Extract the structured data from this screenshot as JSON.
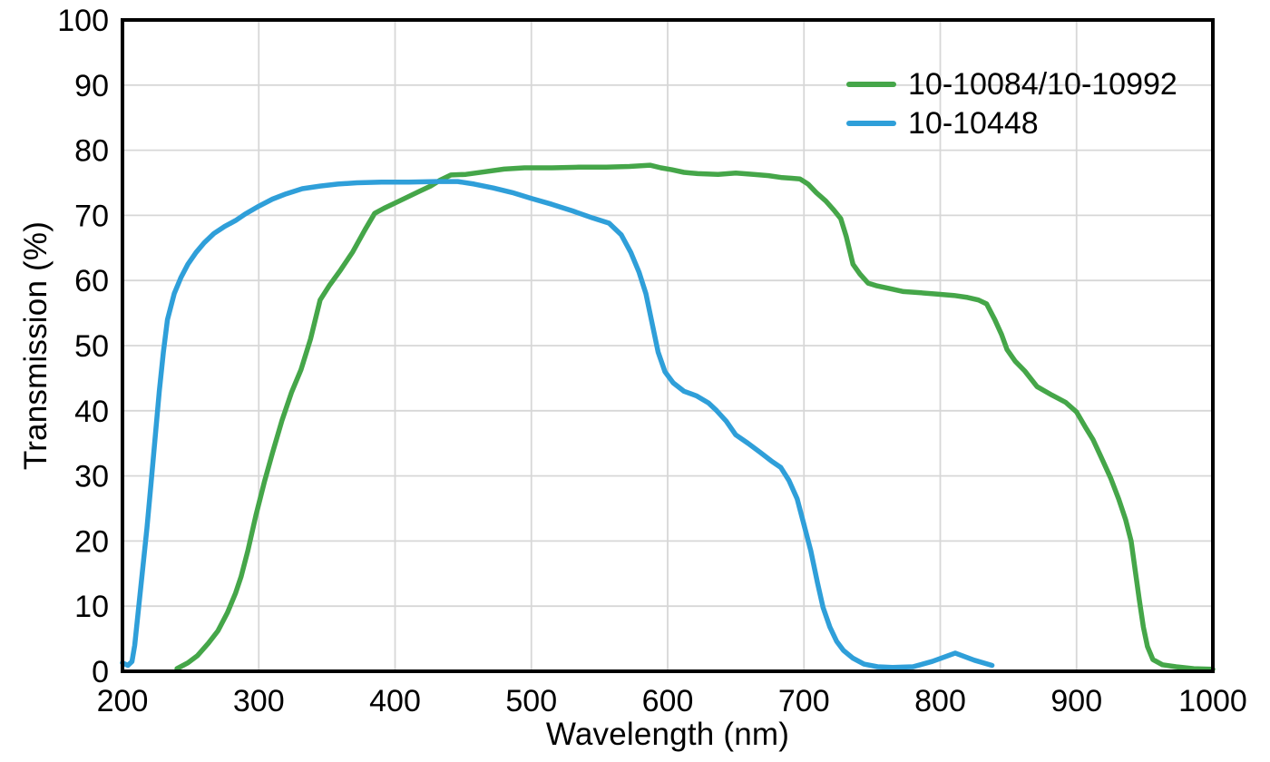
{
  "chart_data": {
    "type": "line",
    "title": "",
    "xlabel": "Wavelength (nm)",
    "ylabel": "Transmission (%)",
    "xlim": [
      200,
      1000
    ],
    "ylim": [
      0,
      100
    ],
    "xticks": [
      200,
      300,
      400,
      500,
      600,
      700,
      800,
      900,
      1000
    ],
    "yticks": [
      0,
      10,
      20,
      30,
      40,
      50,
      60,
      70,
      80,
      90,
      100
    ],
    "grid": true,
    "legend_position": "top-right",
    "colors": {
      "background": "#ffffff",
      "frame": "#000000",
      "grid": "#d7d7d7",
      "text": "#000000"
    },
    "series": [
      {
        "name": "10-10084/10-10992",
        "color": "#45a649",
        "points": [
          [
            240,
            0.4
          ],
          [
            248,
            1.3
          ],
          [
            255,
            2.4
          ],
          [
            263,
            4.3
          ],
          [
            270,
            6.2
          ],
          [
            277,
            9.0
          ],
          [
            283,
            12.0
          ],
          [
            287,
            14.5
          ],
          [
            292,
            18.5
          ],
          [
            298,
            24.0
          ],
          [
            304,
            29.0
          ],
          [
            310,
            33.5
          ],
          [
            317,
            38.5
          ],
          [
            324,
            42.8
          ],
          [
            331,
            46.3
          ],
          [
            338,
            51.0
          ],
          [
            345,
            57.0
          ],
          [
            352,
            59.3
          ],
          [
            360,
            61.6
          ],
          [
            369,
            64.4
          ],
          [
            378,
            67.8
          ],
          [
            385,
            70.3
          ],
          [
            392,
            71.1
          ],
          [
            400,
            71.9
          ],
          [
            409,
            72.8
          ],
          [
            418,
            73.7
          ],
          [
            426,
            74.5
          ],
          [
            433,
            75.4
          ],
          [
            441,
            76.2
          ],
          [
            452,
            76.3
          ],
          [
            466,
            76.7
          ],
          [
            480,
            77.1
          ],
          [
            495,
            77.3
          ],
          [
            515,
            77.3
          ],
          [
            535,
            77.4
          ],
          [
            555,
            77.4
          ],
          [
            572,
            77.5
          ],
          [
            587,
            77.7
          ],
          [
            595,
            77.3
          ],
          [
            603,
            77.0
          ],
          [
            612,
            76.6
          ],
          [
            622,
            76.4
          ],
          [
            637,
            76.3
          ],
          [
            650,
            76.5
          ],
          [
            663,
            76.3
          ],
          [
            674,
            76.1
          ],
          [
            684,
            75.8
          ],
          [
            691,
            75.7
          ],
          [
            697,
            75.6
          ],
          [
            703,
            74.8
          ],
          [
            709,
            73.5
          ],
          [
            716,
            72.2
          ],
          [
            722,
            70.8
          ],
          [
            727,
            69.5
          ],
          [
            731,
            66.8
          ],
          [
            736,
            62.5
          ],
          [
            741,
            61.0
          ],
          [
            747,
            59.6
          ],
          [
            753,
            59.2
          ],
          [
            762,
            58.8
          ],
          [
            773,
            58.3
          ],
          [
            786,
            58.1
          ],
          [
            798,
            57.9
          ],
          [
            810,
            57.7
          ],
          [
            820,
            57.4
          ],
          [
            828,
            57.0
          ],
          [
            834,
            56.4
          ],
          [
            840,
            54.0
          ],
          [
            845,
            51.7
          ],
          [
            849,
            49.4
          ],
          [
            855,
            47.6
          ],
          [
            862,
            46.1
          ],
          [
            871,
            43.7
          ],
          [
            882,
            42.4
          ],
          [
            892,
            41.3
          ],
          [
            900,
            39.8
          ],
          [
            907,
            37.3
          ],
          [
            912,
            35.6
          ],
          [
            918,
            32.9
          ],
          [
            925,
            29.7
          ],
          [
            931,
            26.4
          ],
          [
            936,
            23.3
          ],
          [
            940,
            20.0
          ],
          [
            943,
            15.5
          ],
          [
            946,
            11.0
          ],
          [
            949,
            6.8
          ],
          [
            952,
            3.8
          ],
          [
            956,
            1.8
          ],
          [
            963,
            1.0
          ],
          [
            973,
            0.7
          ],
          [
            986,
            0.4
          ],
          [
            1000,
            0.3
          ]
        ]
      },
      {
        "name": "10-10448",
        "color": "#2f9fd9",
        "points": [
          [
            200,
            1.3
          ],
          [
            204,
            0.9
          ],
          [
            207,
            1.5
          ],
          [
            209,
            4.0
          ],
          [
            212,
            10.0
          ],
          [
            215,
            16.0
          ],
          [
            218,
            22.0
          ],
          [
            221,
            29.0
          ],
          [
            224,
            36.0
          ],
          [
            227,
            43.0
          ],
          [
            230,
            49.0
          ],
          [
            233,
            54.0
          ],
          [
            238,
            58.0
          ],
          [
            243,
            60.5
          ],
          [
            248,
            62.5
          ],
          [
            254,
            64.3
          ],
          [
            260,
            65.8
          ],
          [
            267,
            67.2
          ],
          [
            275,
            68.3
          ],
          [
            283,
            69.2
          ],
          [
            290,
            70.2
          ],
          [
            300,
            71.4
          ],
          [
            310,
            72.5
          ],
          [
            320,
            73.3
          ],
          [
            332,
            74.1
          ],
          [
            345,
            74.5
          ],
          [
            358,
            74.8
          ],
          [
            372,
            75.0
          ],
          [
            390,
            75.1
          ],
          [
            410,
            75.1
          ],
          [
            430,
            75.2
          ],
          [
            446,
            75.2
          ],
          [
            458,
            74.8
          ],
          [
            472,
            74.2
          ],
          [
            486,
            73.5
          ],
          [
            500,
            72.6
          ],
          [
            515,
            71.7
          ],
          [
            530,
            70.7
          ],
          [
            545,
            69.6
          ],
          [
            557,
            68.8
          ],
          [
            566,
            67.0
          ],
          [
            573,
            64.3
          ],
          [
            579,
            61.3
          ],
          [
            584,
            58.0
          ],
          [
            589,
            53.0
          ],
          [
            593,
            49.0
          ],
          [
            598,
            46.0
          ],
          [
            604,
            44.3
          ],
          [
            612,
            43.0
          ],
          [
            621,
            42.3
          ],
          [
            630,
            41.2
          ],
          [
            636,
            40.0
          ],
          [
            643,
            38.4
          ],
          [
            650,
            36.3
          ],
          [
            659,
            35.0
          ],
          [
            668,
            33.6
          ],
          [
            676,
            32.3
          ],
          [
            683,
            31.3
          ],
          [
            689,
            29.3
          ],
          [
            695,
            26.5
          ],
          [
            700,
            22.5
          ],
          [
            705,
            18.5
          ],
          [
            710,
            13.5
          ],
          [
            714,
            9.8
          ],
          [
            719,
            6.8
          ],
          [
            724,
            4.6
          ],
          [
            729,
            3.2
          ],
          [
            736,
            2.0
          ],
          [
            744,
            1.1
          ],
          [
            754,
            0.7
          ],
          [
            765,
            0.6
          ],
          [
            780,
            0.7
          ],
          [
            794,
            1.5
          ],
          [
            811,
            2.8
          ],
          [
            825,
            1.7
          ],
          [
            838,
            0.9
          ]
        ]
      }
    ]
  }
}
